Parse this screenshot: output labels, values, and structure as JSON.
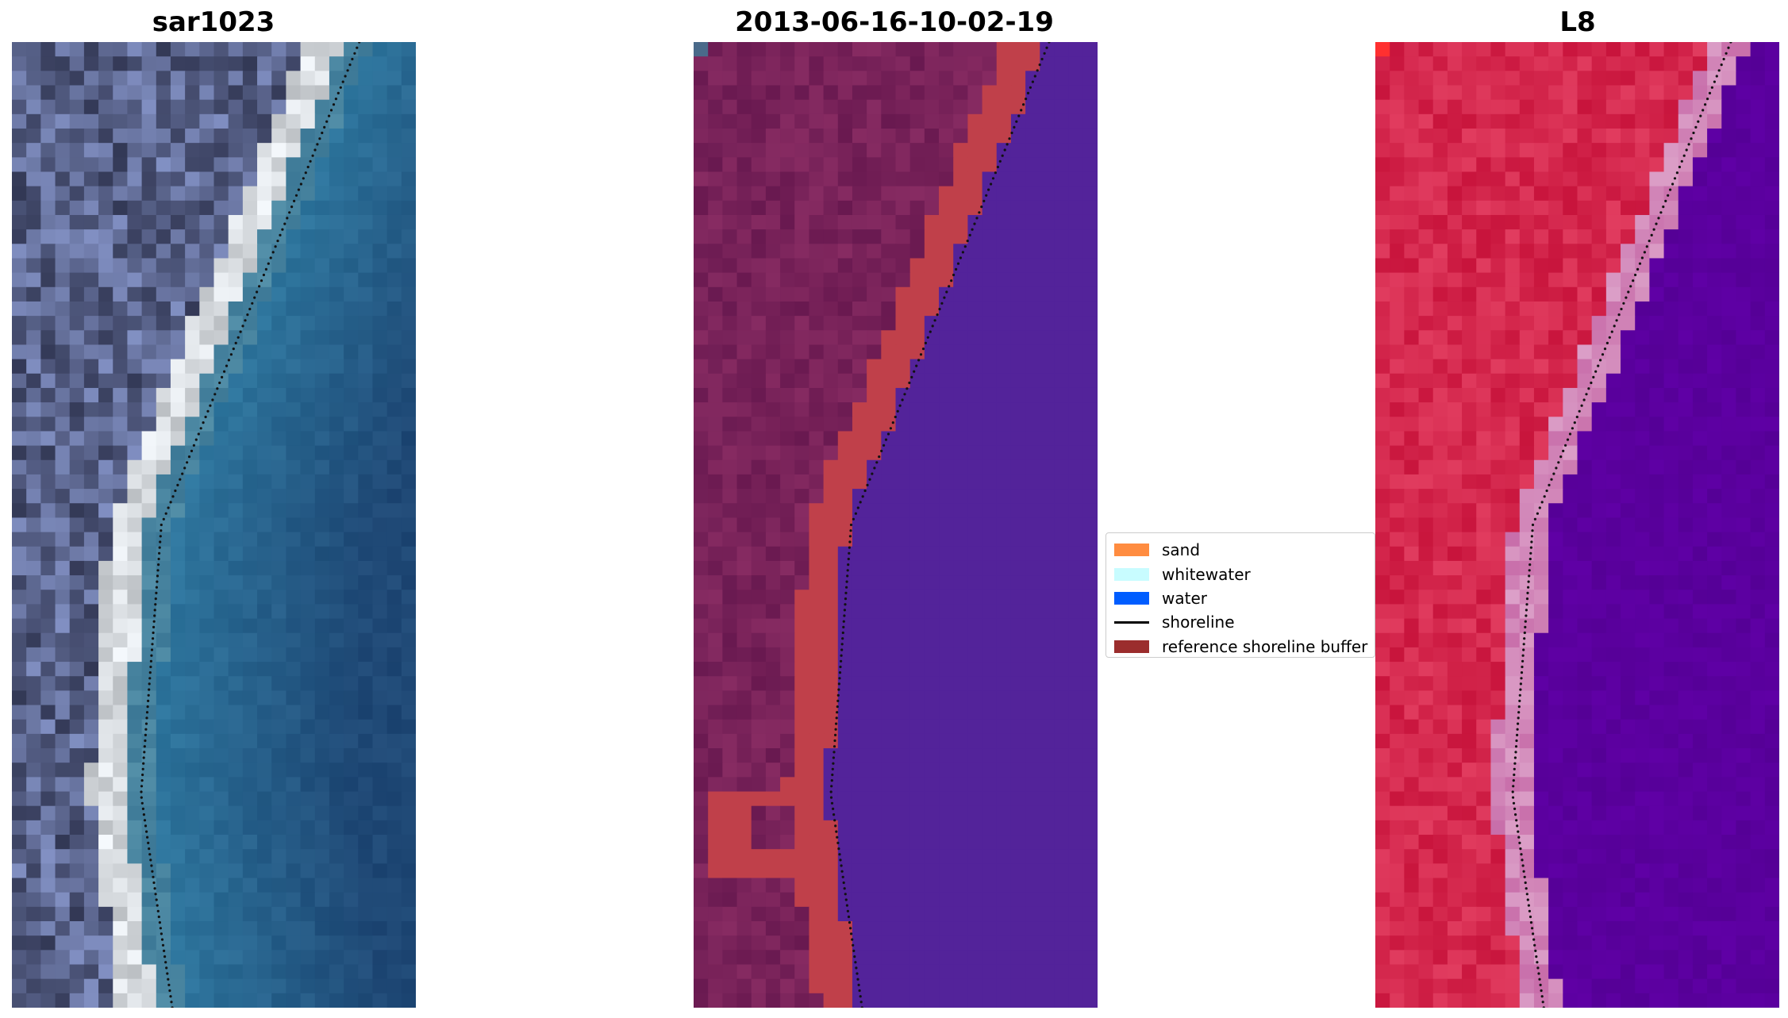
{
  "panels": [
    {
      "title": "sar1023",
      "kind": "rgb"
    },
    {
      "title": "2013-06-16-10-02-19",
      "kind": "classified"
    },
    {
      "title": "L8",
      "kind": "index"
    }
  ],
  "legend": {
    "items": [
      {
        "label": "sand",
        "type": "patch",
        "color": "#ff8c40"
      },
      {
        "label": "whitewater",
        "type": "patch",
        "color": "#c8fcff"
      },
      {
        "label": "water",
        "type": "patch",
        "color": "#005dff"
      },
      {
        "label": "shoreline",
        "type": "line",
        "color": "#000000"
      },
      {
        "label": "reference shoreline buffer",
        "type": "patch",
        "color": "#9b2d2d"
      }
    ]
  },
  "colors": {
    "classified_land": "#6e1c58",
    "classified_water": "#53239a",
    "buffer": "#c0404a",
    "index_land": "#cc1542",
    "index_water": "#5a0096"
  }
}
